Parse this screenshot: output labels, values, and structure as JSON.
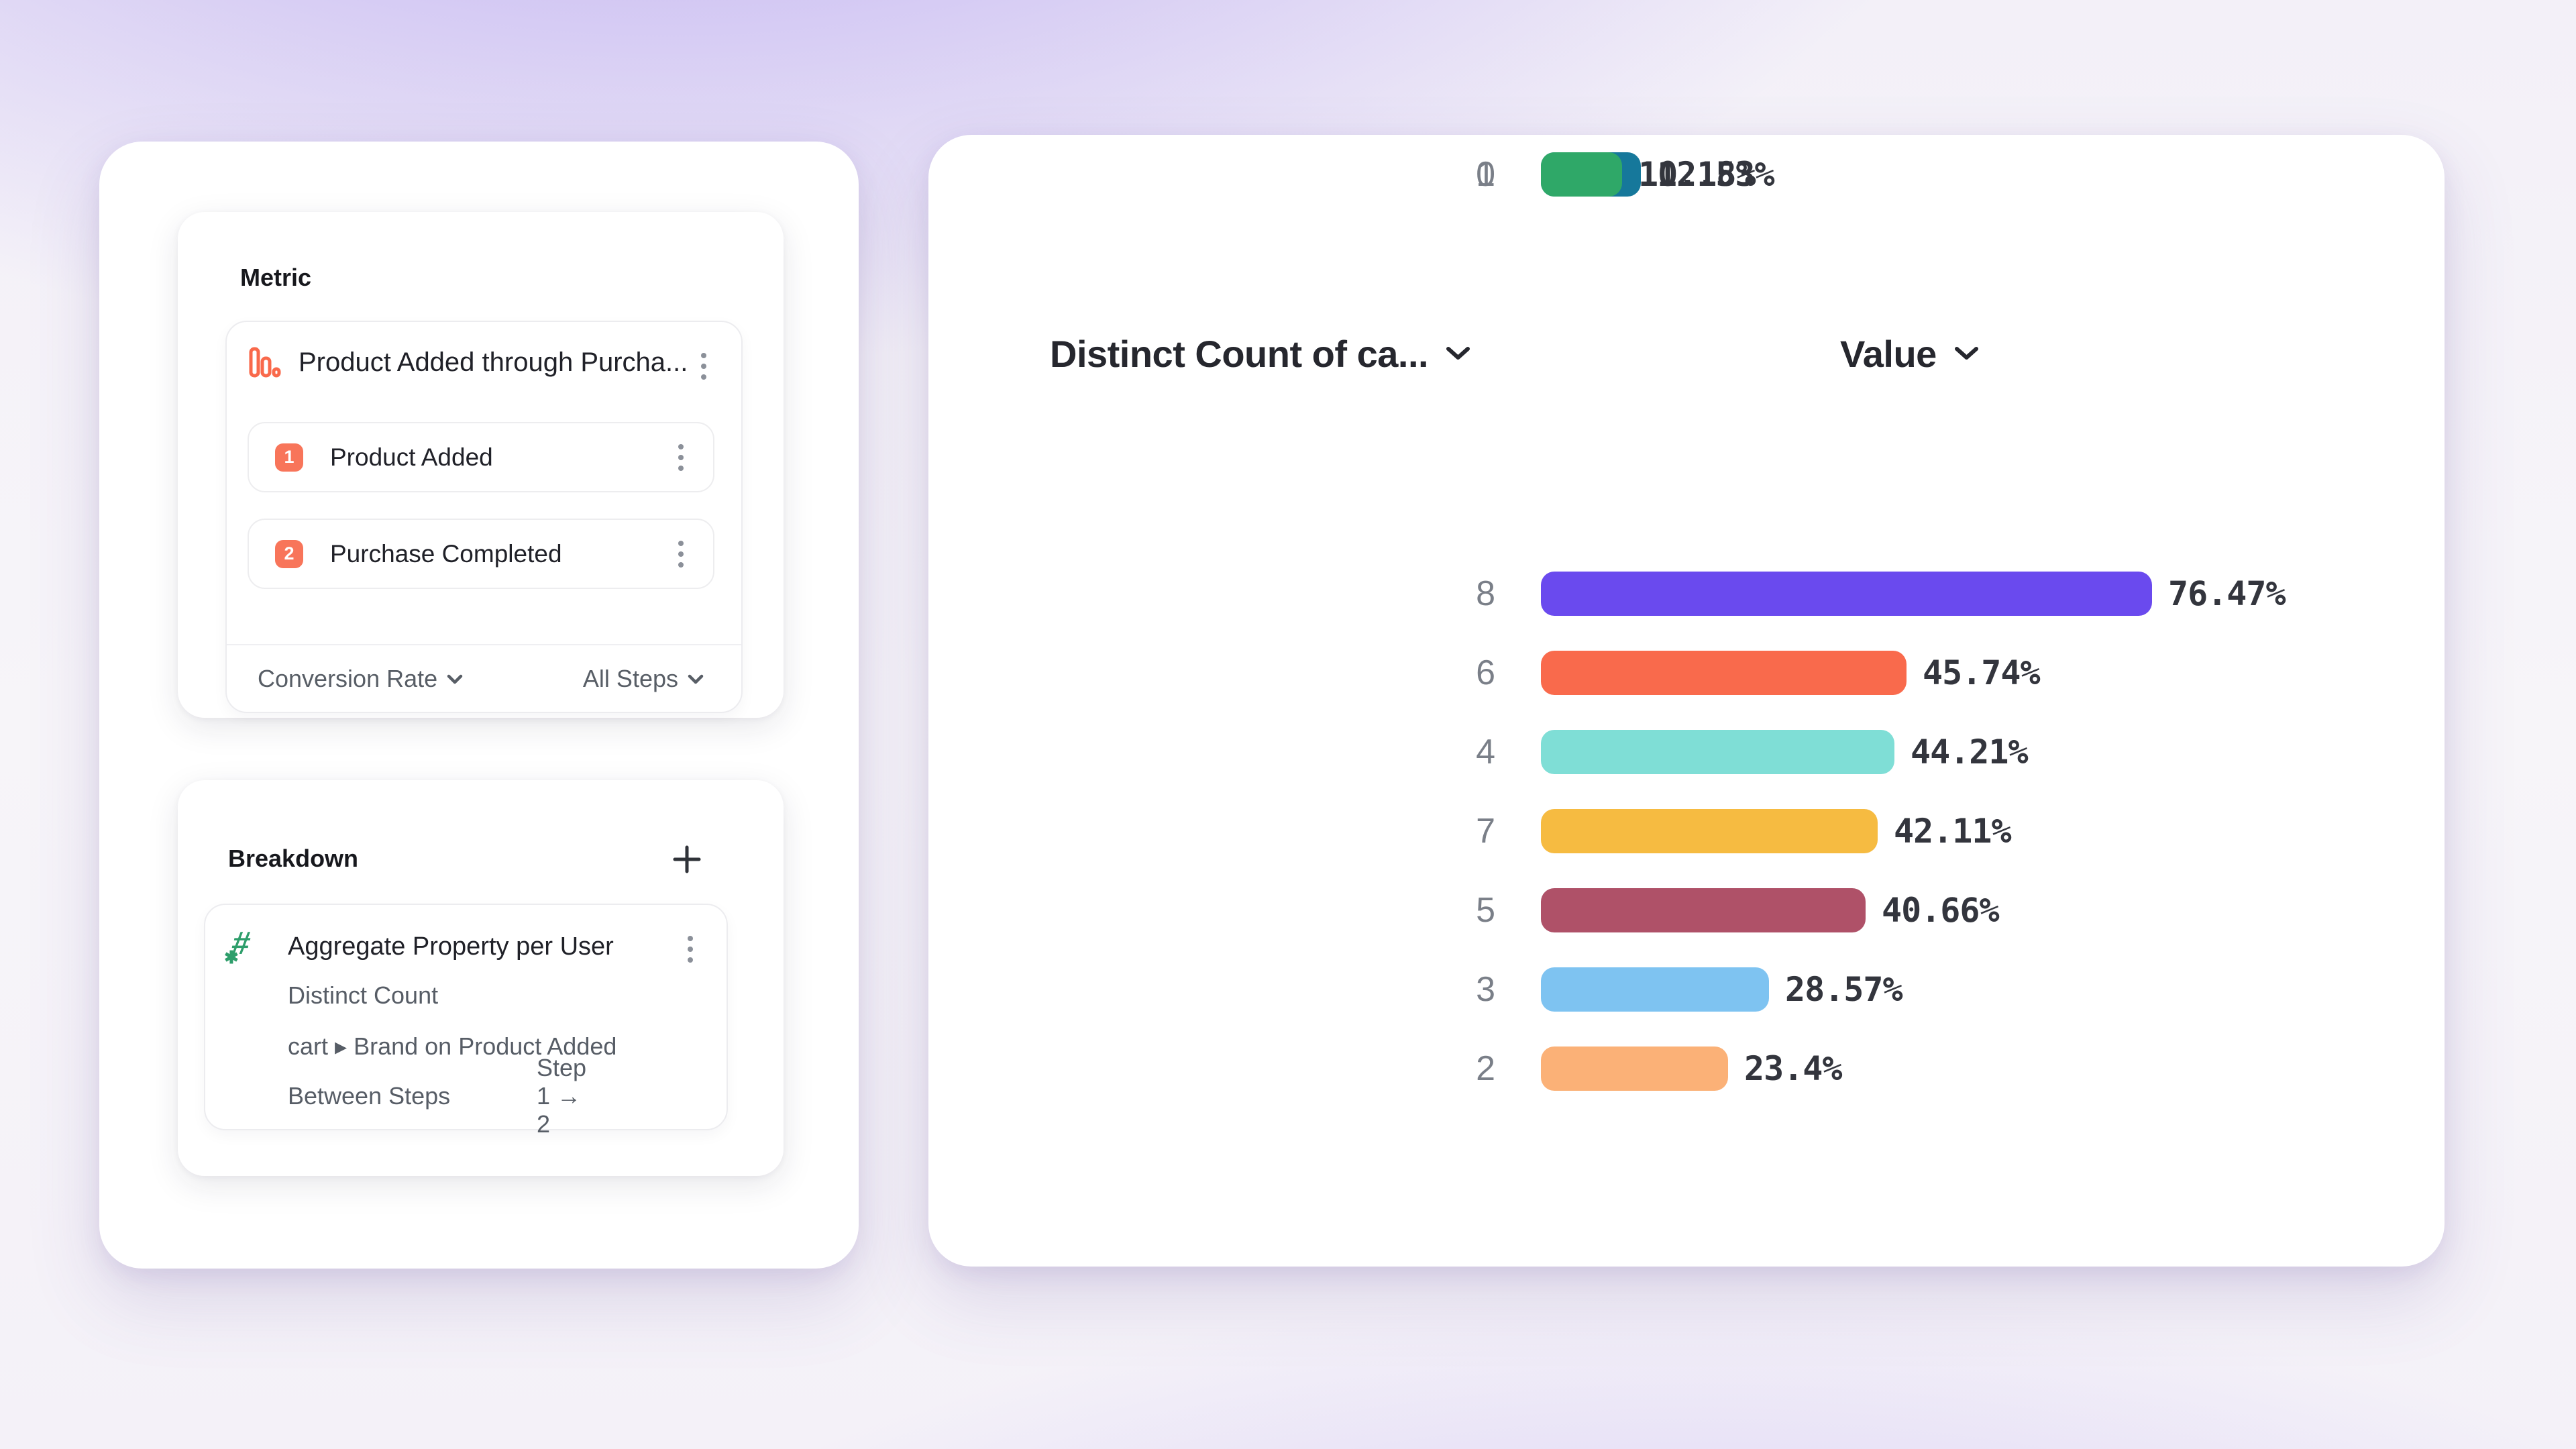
{
  "left_panel": {
    "metric_section": {
      "title": "Metric",
      "metric": {
        "name": "Product Added through Purcha...",
        "steps": [
          {
            "index": "1",
            "label": "Product Added"
          },
          {
            "index": "2",
            "label": "Purchase Completed"
          }
        ],
        "footer": {
          "measure_label": "Conversion Rate",
          "steps_label": "All Steps"
        }
      }
    },
    "breakdown_section": {
      "title": "Breakdown",
      "item": {
        "name": "Aggregate Property per User",
        "aggregation": "Distinct Count",
        "property": "cart ▸ Brand on Product Added",
        "between_label": "Between Steps",
        "between_value": "Step 1 → 2"
      }
    }
  },
  "chart": {
    "columns": [
      {
        "label": "Distinct Count of ca..."
      },
      {
        "label": "Value"
      }
    ]
  },
  "chart_data": {
    "type": "bar",
    "orientation": "horizontal",
    "column_headers": [
      "Distinct Count of ca...",
      "Value"
    ],
    "categories": [
      "8",
      "6",
      "4",
      "7",
      "5",
      "3",
      "2",
      "1",
      "0"
    ],
    "values": [
      76.47,
      45.74,
      44.21,
      42.11,
      40.66,
      28.57,
      23.4,
      12.53,
      10.18
    ],
    "labels": [
      "76.47%",
      "45.74%",
      "44.21%",
      "42.11%",
      "40.66%",
      "28.57%",
      "23.4%",
      "12.53%",
      "10.18%"
    ],
    "colors": [
      "#6a4aee",
      "#f96a4c",
      "#7fded6",
      "#f6bb41",
      "#af5168",
      "#7ec3f1",
      "#fbb177",
      "#16789b",
      "#2fa868"
    ],
    "value_suffix": "%",
    "xlim": [
      0,
      100
    ],
    "grid": false,
    "legend": "none"
  },
  "colors": {
    "accent_orange": "#f8755a",
    "icon_orange": "#f9694b",
    "icon_green": "#2e9e6b",
    "background_purple": "#7c5ce6",
    "card_white": "#ffffff"
  }
}
